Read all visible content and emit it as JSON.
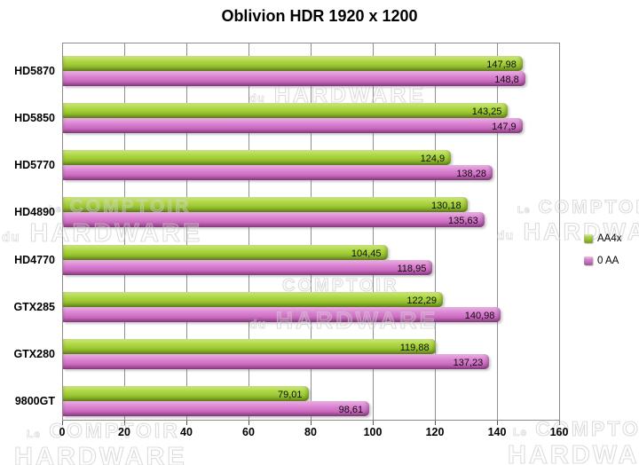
{
  "title": "Oblivion HDR 1920 x 1200",
  "chart_data": {
    "type": "bar",
    "orientation": "horizontal",
    "title": "Oblivion HDR 1920 x 1200",
    "categories": [
      "HD5870",
      "HD5850",
      "HD5770",
      "HD4890",
      "HD4770",
      "GTX285",
      "GTX280",
      "9800GT"
    ],
    "series": [
      {
        "name": "AA4x",
        "color": "#a6d13b",
        "values": [
          147.98,
          143.25,
          124.9,
          130.18,
          104.45,
          122.29,
          119.88,
          79.01
        ],
        "labels": [
          "147,98",
          "143,25",
          "124,9",
          "130,18",
          "104,45",
          "122,29",
          "119,88",
          "79,01"
        ]
      },
      {
        "name": "0 AA",
        "color": "#d67ccc",
        "values": [
          148.8,
          147.9,
          138.28,
          135.63,
          118.95,
          140.98,
          137.23,
          98.61
        ],
        "labels": [
          "148,8",
          "147,9",
          "138,28",
          "135,63",
          "118,95",
          "140,98",
          "137,23",
          "98,61"
        ]
      }
    ],
    "xlim": [
      0,
      160
    ],
    "xticks": [
      0,
      20,
      40,
      60,
      80,
      100,
      120,
      140,
      160
    ],
    "grid": "vertical",
    "legend_position": "middle-right",
    "value_labels": "inside-end"
  },
  "legend": {
    "items": [
      {
        "label": "AA4x",
        "color": "#a6d13b"
      },
      {
        "label": "0 AA",
        "color": "#d67ccc"
      }
    ]
  },
  "watermark": {
    "le": "Le",
    "du": "du",
    "comptoir": "COMPTOIR",
    "hardware": "HARDWARE"
  }
}
